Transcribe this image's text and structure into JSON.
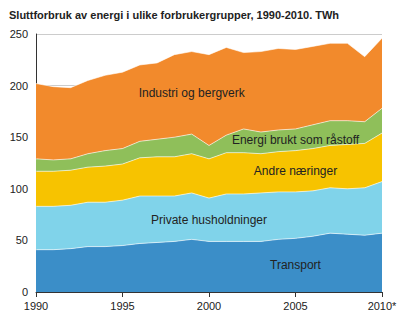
{
  "chart_data": {
    "type": "area",
    "title": "Sluttforbruk av energi i ulike forbrukergrupper, 1990-2010. TWh",
    "categories": [
      "1990",
      null,
      null,
      null,
      null,
      "1995",
      null,
      null,
      null,
      null,
      "2000",
      null,
      null,
      null,
      null,
      "2005",
      null,
      null,
      null,
      null,
      "2010*"
    ],
    "stacked": true,
    "grid": true,
    "ylim": [
      0,
      250
    ],
    "yticks": [
      0,
      50,
      100,
      150,
      200,
      250
    ],
    "series": [
      {
        "name": "Transport",
        "color": "#3b8ec8",
        "values": [
          41,
          41,
          42,
          44,
          44,
          45,
          47,
          48,
          49,
          51,
          49,
          49,
          49,
          49,
          51,
          52,
          54,
          57,
          56,
          55,
          57
        ]
      },
      {
        "name": "Private husholdninger",
        "color": "#80d3ea",
        "values": [
          42,
          42,
          42,
          43,
          43,
          44,
          46,
          45,
          44,
          45,
          42,
          46,
          46,
          47,
          46,
          45,
          44,
          44,
          44,
          46,
          50
        ]
      },
      {
        "name": "Andre næringer",
        "color": "#f7c300",
        "values": [
          34,
          34,
          34,
          34,
          35,
          35,
          37,
          38,
          38,
          38,
          38,
          40,
          40,
          38,
          39,
          40,
          41,
          41,
          43,
          43,
          47
        ]
      },
      {
        "name": "Energi brukt som råstoff",
        "color": "#8fbf5a",
        "values": [
          12,
          11,
          11,
          13,
          15,
          15,
          16,
          17,
          19,
          19,
          13,
          17,
          23,
          21,
          21,
          21,
          23,
          24,
          23,
          21,
          24
        ]
      },
      {
        "name": "Industri og bergverk",
        "color": "#f28a2c",
        "values": [
          73,
          71,
          69,
          71,
          73,
          74,
          74,
          74,
          80,
          80,
          88,
          85,
          74,
          78,
          79,
          77,
          76,
          75,
          75,
          63,
          68
        ]
      }
    ]
  }
}
